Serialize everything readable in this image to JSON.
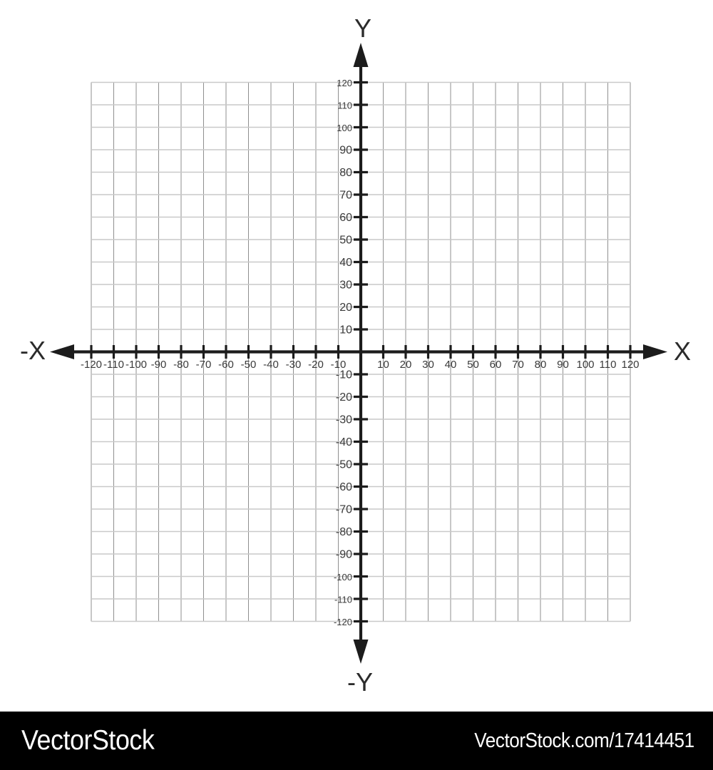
{
  "chart_data": {
    "type": "cartesian-grid",
    "series": [],
    "grid": {
      "visible": true,
      "cell_size_units": 10
    },
    "x_axis": {
      "positive_label": "X",
      "negative_label": "-X",
      "min": -120,
      "max": 120,
      "tick_step": 10,
      "tick_labels": [
        "-120",
        "-110",
        "-100",
        "-90",
        "-80",
        "-70",
        "-60",
        "-50",
        "-40",
        "-30",
        "-20",
        "-10",
        "10",
        "20",
        "30",
        "40",
        "50",
        "60",
        "70",
        "80",
        "90",
        "100",
        "110",
        "120"
      ]
    },
    "y_axis": {
      "positive_label": "Y",
      "negative_label": "-Y",
      "min": -120,
      "max": 120,
      "tick_step": 10,
      "tick_labels": [
        "120",
        "110",
        "100",
        "90",
        "80",
        "70",
        "60",
        "50",
        "40",
        "30",
        "20",
        "10",
        "-10",
        "-20",
        "-30",
        "-40",
        "-50",
        "-60",
        "-70",
        "-80",
        "-90",
        "-100",
        "-110",
        "-120"
      ]
    }
  },
  "colors": {
    "background": "#ffffff",
    "axis": "#1c1c1c",
    "axis_letter": "#2b2b2b",
    "tick_label": "#3a3a3a",
    "grid_vertical": "#8f8f8f",
    "grid_horizontal": "#c9c9c9",
    "watermark_bar": "#000000",
    "watermark_text": "#ffffff"
  },
  "watermark": {
    "brand": "VectorStock",
    "credit": "VectorStock.com/17414451"
  }
}
